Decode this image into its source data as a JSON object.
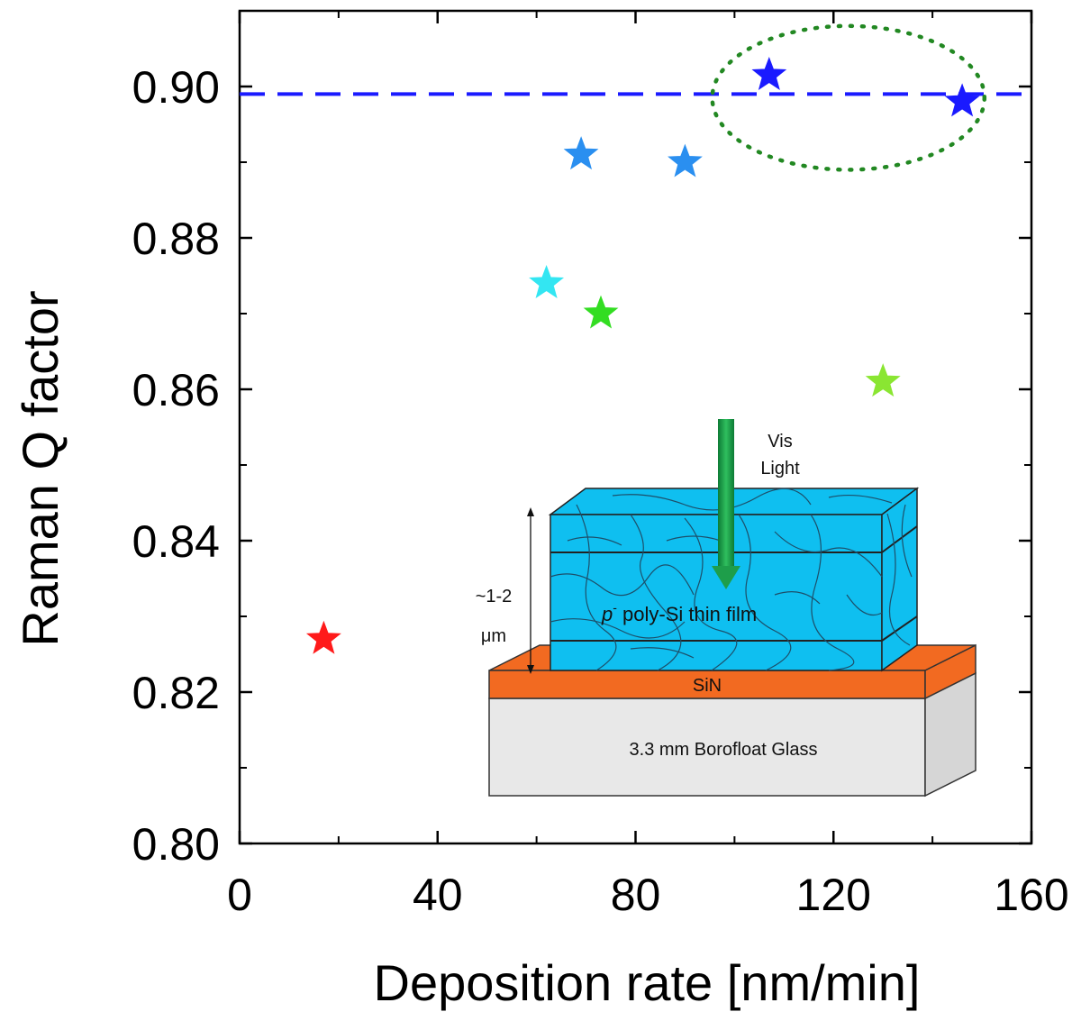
{
  "chart_data": {
    "type": "scatter",
    "title": "",
    "xlabel": "Deposition rate [nm/min]",
    "ylabel": "Raman Q factor",
    "xlim": [
      0,
      160
    ],
    "ylim": [
      0.8,
      0.91
    ],
    "x_ticks": [
      0,
      40,
      80,
      120,
      160
    ],
    "x_tick_labels": [
      "0",
      "40",
      "80",
      "120",
      "160"
    ],
    "y_ticks": [
      0.8,
      0.82,
      0.84,
      0.86,
      0.88,
      0.9
    ],
    "y_tick_labels": [
      "0.80",
      "0.82",
      "0.84",
      "0.86",
      "0.88",
      "0.90"
    ],
    "marker": "star",
    "points": [
      {
        "x": 17,
        "y": 0.827,
        "color": "#ff1a1a"
      },
      {
        "x": 62,
        "y": 0.874,
        "color": "#33e6f2"
      },
      {
        "x": 69,
        "y": 0.891,
        "color": "#2a8ff0"
      },
      {
        "x": 73,
        "y": 0.87,
        "color": "#33dd22"
      },
      {
        "x": 90,
        "y": 0.89,
        "color": "#2a8ff0"
      },
      {
        "x": 107,
        "y": 0.9015,
        "color": "#1a1aff"
      },
      {
        "x": 130,
        "y": 0.861,
        "color": "#8ae632"
      },
      {
        "x": 146,
        "y": 0.898,
        "color": "#1a1aff"
      }
    ],
    "reference_line": {
      "y": 0.899,
      "style": "dashed",
      "color": "#1a1aff"
    },
    "highlight_ellipse": {
      "cx": 123,
      "cy": 0.8985,
      "rx": 27.5,
      "ry": 0.0095,
      "style": "dotted",
      "color": "#228822"
    }
  },
  "inset": {
    "vis_label": "Vis",
    "light_label": "Light",
    "thickness_label": "~1-2",
    "thickness_unit": "μm",
    "film_label_super": "p",
    "film_label_super_sign": "-",
    "film_label": " poly-Si thin film",
    "sin_label": "SiN",
    "glass_label": "3.3 mm Borofloat Glass",
    "colors": {
      "film": "#0fbff0",
      "sin": "#f26a21",
      "glass": "#e8e8e8",
      "arrow": "#1e9e4a"
    }
  }
}
